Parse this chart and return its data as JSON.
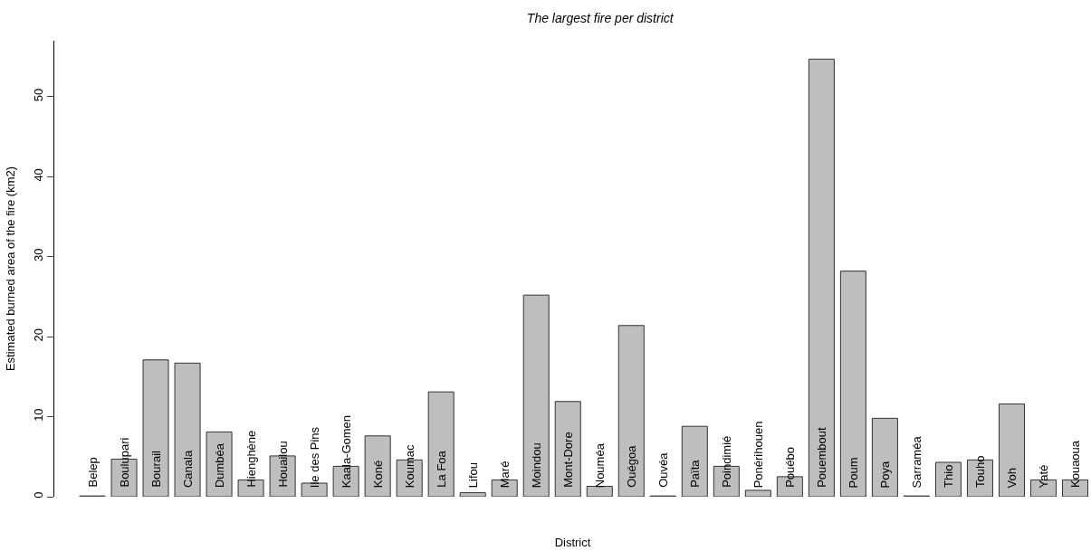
{
  "chart_data": {
    "type": "bar",
    "title": "The largest fire per district",
    "xlabel": "District",
    "ylabel": "Estimated burned area of the fire (km2)",
    "categories": [
      "Belep",
      "Boulupari",
      "Bourail",
      "Canala",
      "Dumbéa",
      "Hienghène",
      "Houailou",
      "Ile des Pins",
      "Kaala-Gomen",
      "Koné",
      "Koumac",
      "La Foa",
      "Lifou",
      "Maré",
      "Moindou",
      "Mont-Dore",
      "Nouméa",
      "Ouégoa",
      "Ouvéa",
      "Païta",
      "Poindimié",
      "Ponérihouen",
      "Pouébo",
      "Pouembout",
      "Poum",
      "Poya",
      "Sarraméa",
      "Thio",
      "Touho",
      "Voh",
      "Yaté",
      "Kouaoua"
    ],
    "values": [
      0.1,
      4.7,
      17.1,
      16.7,
      8.1,
      2.1,
      5.1,
      1.7,
      3.8,
      7.6,
      4.6,
      13.1,
      0.5,
      2.1,
      25.2,
      11.9,
      1.3,
      21.4,
      0.1,
      8.8,
      3.8,
      0.8,
      2.5,
      54.7,
      28.2,
      9.8,
      0.1,
      4.3,
      4.6,
      11.6,
      2.1,
      2.1
    ],
    "color": "#bebebe",
    "ylim": [
      0,
      57
    ],
    "yticks": [
      0,
      10,
      20,
      30,
      40,
      50
    ],
    "tick_labels": "y"
  }
}
